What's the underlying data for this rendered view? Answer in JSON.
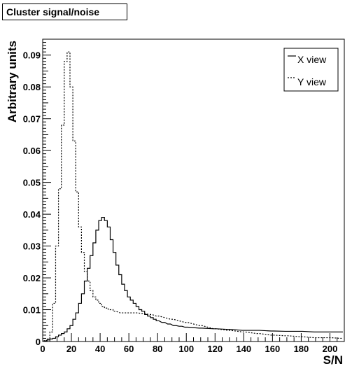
{
  "chart_data": {
    "type": "line",
    "title": "Cluster signal/noise",
    "xlabel": "S/N",
    "ylabel": "Arbitrary units",
    "xlim": [
      0,
      210
    ],
    "ylim": [
      0,
      0.095
    ],
    "xticks": [
      0,
      20,
      40,
      60,
      80,
      100,
      120,
      140,
      160,
      180,
      200
    ],
    "yticks": [
      0,
      0.01,
      0.02,
      0.03,
      0.04,
      0.05,
      0.06,
      0.07,
      0.08,
      0.09
    ],
    "ytick_labels": [
      "0",
      "0.01",
      "0.02",
      "0.03",
      "0.04",
      "0.05",
      "0.06",
      "0.07",
      "0.08",
      "0.09"
    ],
    "legend_position": "top-right",
    "grid": false,
    "series": [
      {
        "name": "X view",
        "style": "solid",
        "x": [
          2,
          4,
          6,
          8,
          10,
          12,
          14,
          16,
          18,
          20,
          22,
          24,
          26,
          28,
          30,
          32,
          34,
          36,
          38,
          40,
          42,
          44,
          46,
          48,
          50,
          52,
          54,
          56,
          58,
          60,
          62,
          64,
          66,
          68,
          70,
          72,
          74,
          76,
          78,
          80,
          84,
          88,
          92,
          96,
          100,
          110,
          120,
          130,
          140,
          150,
          160,
          170,
          180,
          190,
          200,
          208
        ],
        "y": [
          0.0002,
          0.0005,
          0.0008,
          0.001,
          0.0015,
          0.002,
          0.0025,
          0.003,
          0.004,
          0.005,
          0.007,
          0.009,
          0.012,
          0.015,
          0.019,
          0.023,
          0.027,
          0.031,
          0.035,
          0.038,
          0.039,
          0.038,
          0.036,
          0.032,
          0.028,
          0.024,
          0.021,
          0.018,
          0.016,
          0.014,
          0.013,
          0.012,
          0.011,
          0.01,
          0.0095,
          0.0085,
          0.008,
          0.0075,
          0.007,
          0.0065,
          0.006,
          0.0055,
          0.005,
          0.0048,
          0.0045,
          0.0042,
          0.004,
          0.0038,
          0.0035,
          0.0035,
          0.0033,
          0.0032,
          0.0032,
          0.003,
          0.003,
          0.003
        ]
      },
      {
        "name": "Y view",
        "style": "dashed",
        "x": [
          2,
          4,
          6,
          8,
          10,
          12,
          14,
          16,
          18,
          20,
          22,
          24,
          26,
          28,
          30,
          32,
          34,
          36,
          38,
          40,
          42,
          44,
          46,
          48,
          50,
          55,
          60,
          65,
          70,
          75,
          80,
          90,
          100,
          110,
          120,
          130,
          140,
          150,
          160,
          170,
          180,
          190,
          200,
          208
        ],
        "y": [
          0.0003,
          0.0008,
          0.003,
          0.012,
          0.03,
          0.048,
          0.068,
          0.088,
          0.091,
          0.08,
          0.063,
          0.047,
          0.036,
          0.028,
          0.022,
          0.019,
          0.016,
          0.014,
          0.013,
          0.012,
          0.011,
          0.0105,
          0.0102,
          0.01,
          0.0095,
          0.009,
          0.009,
          0.009,
          0.0088,
          0.0085,
          0.008,
          0.007,
          0.006,
          0.005,
          0.004,
          0.0035,
          0.003,
          0.0025,
          0.002,
          0.0018,
          0.0015,
          0.0012,
          0.0012,
          0.001
        ]
      }
    ]
  }
}
